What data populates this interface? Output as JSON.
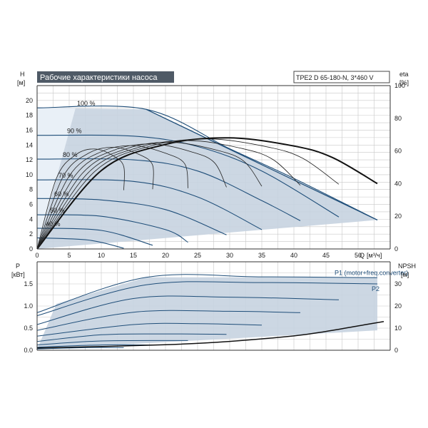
{
  "chart_data": [
    {
      "type": "line",
      "title": "Рабочие характеристики насоса",
      "model": "TPE2 D 65-180-N, 3*460 V",
      "ylabel": "H",
      "ylabel_unit": "[м]",
      "y2label": "eta",
      "y2label_unit": "[%]",
      "xlabel": "Q",
      "xlabel_unit": "[м³/ч]",
      "xlim": [
        0,
        55
      ],
      "ylim": [
        0,
        22
      ],
      "y2lim": [
        0,
        100
      ],
      "x_ticks": [
        0,
        5,
        10,
        15,
        20,
        25,
        30,
        35,
        40,
        45,
        50
      ],
      "y_ticks": [
        0,
        2,
        4,
        6,
        8,
        10,
        12,
        14,
        16,
        18,
        20
      ],
      "y2_ticks": [
        0,
        20,
        40,
        60,
        80,
        100
      ],
      "grid": true,
      "envelope": {
        "x": [
          0,
          17,
          53,
          0
        ],
        "y": [
          19,
          18.8,
          3.9,
          0
        ]
      },
      "series": [
        {
          "label": "100 %",
          "x": [
            0,
            17,
            30,
            40,
            53
          ],
          "y": [
            19,
            18.8,
            13.5,
            9.5,
            3.9
          ]
        },
        {
          "label": "90 %",
          "x": [
            0,
            15,
            25,
            35,
            47
          ],
          "y": [
            15.3,
            15.2,
            13.8,
            10.5,
            4.3
          ]
        },
        {
          "label": "80 %",
          "x": [
            0,
            15,
            25,
            35,
            41
          ],
          "y": [
            12.1,
            12,
            10.5,
            6.5,
            3.8
          ]
        },
        {
          "label": "70 %",
          "x": [
            0,
            15,
            25,
            35
          ],
          "y": [
            9.3,
            9.1,
            7,
            2.6
          ]
        },
        {
          "label": "60 %",
          "x": [
            0,
            10,
            20,
            29.5
          ],
          "y": [
            6.8,
            6.6,
            5.3,
            1.9
          ]
        },
        {
          "label": "50 %",
          "x": [
            0,
            10,
            20,
            23.5
          ],
          "y": [
            4.6,
            4.4,
            2.6,
            0.9
          ]
        },
        {
          "label": "40 %",
          "x": [
            0,
            10,
            18
          ],
          "y": [
            2.8,
            2.5,
            0.5
          ]
        },
        {
          "label": "",
          "x": [
            0,
            8,
            13.5
          ],
          "y": [
            1.5,
            1.2,
            0.1
          ]
        }
      ],
      "eta_curve": {
        "x": [
          0,
          10,
          20,
          30,
          40,
          46,
          53
        ],
        "y": [
          0,
          48,
          64,
          68,
          63,
          56,
          40
        ]
      }
    },
    {
      "type": "line",
      "ylabel": "P",
      "ylabel_unit": "[кВт]",
      "y2label": "NPSH",
      "y2label_unit": "[м]",
      "xlim": [
        0,
        55
      ],
      "ylim": [
        0,
        2
      ],
      "y2lim": [
        0,
        40
      ],
      "y_ticks": [
        0.0,
        0.5,
        1.0,
        1.5
      ],
      "y_tick_labels": [
        "0.0",
        "0.5",
        "1.0",
        "1.5"
      ],
      "y2_ticks": [
        0,
        10,
        20,
        30
      ],
      "grid": true,
      "envelope": {
        "x": [
          0,
          3,
          17,
          53,
          53,
          0
        ],
        "y": [
          0.02,
          1.05,
          1.65,
          1.65,
          0.45,
          0.02
        ]
      },
      "series": [
        {
          "label": "P1 (motor+freq.converter)",
          "x": [
            0,
            17,
            35,
            53
          ],
          "y": [
            0.85,
            1.65,
            1.66,
            1.64
          ]
        },
        {
          "label": "P2",
          "x": [
            0,
            17,
            35,
            53
          ],
          "y": [
            0.78,
            1.48,
            1.53,
            1.5
          ]
        },
        {
          "label": "",
          "x": [
            0,
            15,
            30,
            47
          ],
          "y": [
            0.58,
            1.17,
            1.2,
            1.14
          ]
        },
        {
          "label": "",
          "x": [
            0,
            15,
            30,
            41
          ],
          "y": [
            0.45,
            0.86,
            0.88,
            0.85
          ]
        },
        {
          "label": "",
          "x": [
            0,
            15,
            25,
            35
          ],
          "y": [
            0.32,
            0.58,
            0.6,
            0.57
          ]
        },
        {
          "label": "",
          "x": [
            0,
            10,
            20,
            29.5
          ],
          "y": [
            0.2,
            0.35,
            0.37,
            0.36
          ]
        },
        {
          "label": "",
          "x": [
            0,
            10,
            23.5
          ],
          "y": [
            0.12,
            0.21,
            0.22
          ]
        },
        {
          "label": "",
          "x": [
            0,
            10,
            18
          ],
          "y": [
            0.07,
            0.12,
            0.12
          ]
        },
        {
          "label": "",
          "x": [
            0,
            8,
            13.5
          ],
          "y": [
            0.03,
            0.06,
            0.06
          ]
        }
      ],
      "npsh_curve": {
        "x": [
          0,
          20,
          30,
          40,
          45,
          50,
          54
        ],
        "y": [
          1,
          2.5,
          4,
          6.5,
          8.5,
          11,
          13
        ]
      }
    }
  ]
}
